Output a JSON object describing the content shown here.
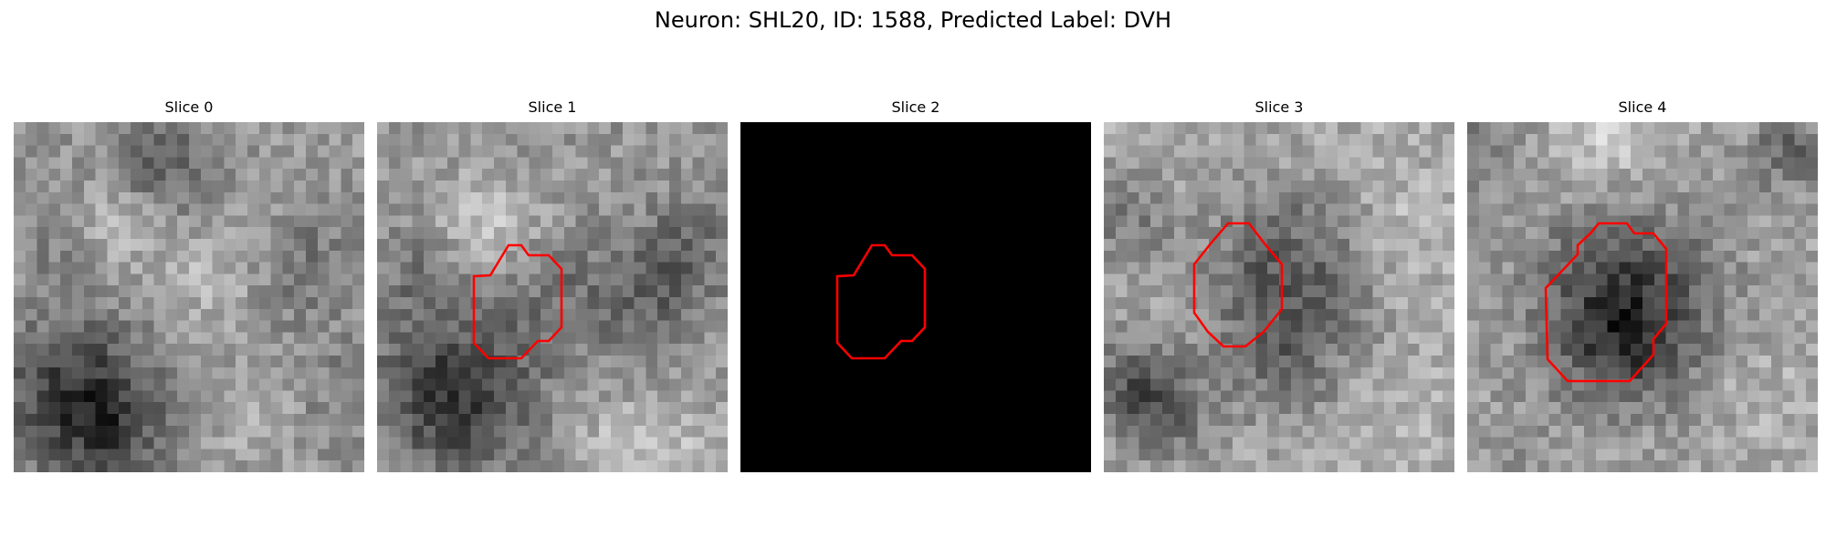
{
  "figure": {
    "title": "Neuron: SHL20, ID: 1588, Predicted Label: DVH"
  },
  "colors": {
    "contour": "#ff0000",
    "background": "#ffffff",
    "text": "#000000",
    "blank_slice": "#000000"
  },
  "slices": [
    {
      "title": "Slice 0",
      "has_contour": false,
      "blank": false
    },
    {
      "title": "Slice 1",
      "has_contour": true,
      "blank": false
    },
    {
      "title": "Slice 2",
      "has_contour": true,
      "blank": true
    },
    {
      "title": "Slice 3",
      "has_contour": true,
      "blank": false
    },
    {
      "title": "Slice 4",
      "has_contour": true,
      "blank": false
    }
  ]
}
